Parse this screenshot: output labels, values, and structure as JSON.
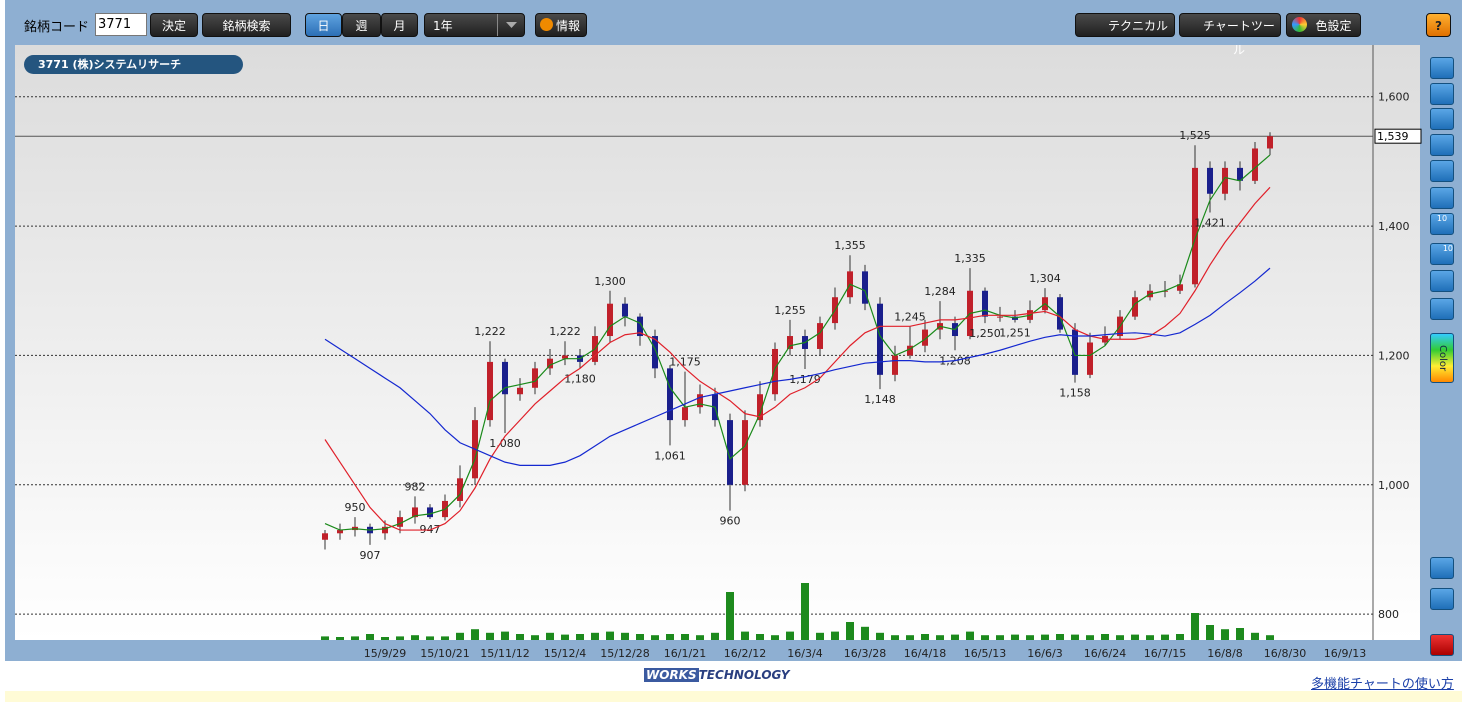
{
  "toolbar": {
    "code_label": "銘柄コード",
    "code_value": "3771",
    "decide": "決定",
    "search": "銘柄検索",
    "periods": [
      "日",
      "週",
      "月"
    ],
    "range": "1年",
    "info": "情報",
    "technical": "テクニカル",
    "chart_tool": "チャートツール",
    "color_setting": "色設定",
    "help": "?"
  },
  "side_tools": {
    "badges": [
      "10",
      "10"
    ],
    "color_label": "Color"
  },
  "chart_data": {
    "type": "candlestick",
    "title": "3771 (株)システムリサーチ",
    "ylim": [
      760,
      1680
    ],
    "yticks": [
      800,
      {
        "value": 1000,
        "label": "1,000"
      },
      {
        "value": 1200,
        "label": "1,200"
      },
      {
        "value": 1400,
        "label": "1,400"
      },
      {
        "value": 1600,
        "label": "1,600"
      }
    ],
    "grid": true,
    "last_price": {
      "value": 1539,
      "label": "1,539"
    },
    "up_color": "#c0202a",
    "down_color": "#1a1f8c",
    "volume_color": "#1d8a1d",
    "categories": [
      null,
      null,
      null,
      null,
      "15/9/29",
      null,
      null,
      null,
      "15/10/21",
      null,
      null,
      null,
      "15/11/12",
      null,
      null,
      null,
      "15/12/4",
      null,
      null,
      null,
      "15/12/28",
      null,
      null,
      null,
      "16/1/21",
      null,
      null,
      null,
      "16/2/12",
      null,
      null,
      null,
      "16/3/4",
      null,
      null,
      null,
      "16/3/28",
      null,
      null,
      null,
      "16/4/18",
      null,
      null,
      null,
      "16/5/13",
      null,
      null,
      null,
      "16/6/3",
      null,
      null,
      null,
      "16/6/24",
      null,
      null,
      null,
      "16/7/15",
      null,
      null,
      null,
      "16/8/8",
      null,
      null,
      null,
      "16/8/30",
      null,
      null,
      null,
      "16/9/13"
    ],
    "open": [
      915,
      925,
      930,
      935,
      925,
      935,
      950,
      965,
      950,
      975,
      1010,
      1100,
      1190,
      1140,
      1150,
      1180,
      1195,
      1200,
      1190,
      1230,
      1280,
      1260,
      1230,
      1180,
      1100,
      1120,
      1140,
      1100,
      1000,
      1100,
      1140,
      1210,
      1230,
      1210,
      1250,
      1290,
      1330,
      1280,
      1170,
      1200,
      1215,
      1240,
      1250,
      1230,
      1300,
      1260,
      1260,
      1255,
      1270,
      1290,
      1240,
      1170,
      1220,
      1230,
      1260,
      1290,
      1300,
      1300,
      1310,
      1490,
      1450,
      1490,
      1470,
      1520,
      null,
      null,
      null,
      null,
      null
    ],
    "high": [
      930,
      940,
      950,
      940,
      945,
      960,
      982,
      970,
      985,
      1030,
      1120,
      1222,
      1195,
      1165,
      1190,
      1210,
      1222,
      1210,
      1245,
      1300,
      1290,
      1265,
      1240,
      1185,
      1175,
      1155,
      1150,
      1110,
      1115,
      1160,
      1220,
      1255,
      1240,
      1260,
      1305,
      1355,
      1340,
      1290,
      1215,
      1245,
      1255,
      1284,
      1260,
      1335,
      1305,
      1275,
      1270,
      1285,
      1304,
      1295,
      1250,
      1235,
      1245,
      1270,
      1300,
      1310,
      1315,
      1325,
      1525,
      1500,
      1500,
      1500,
      1530,
      1545,
      null,
      null,
      null,
      null,
      null
    ],
    "low": [
      900,
      915,
      920,
      907,
      915,
      925,
      940,
      947,
      945,
      965,
      1000,
      1090,
      1080,
      1130,
      1140,
      1170,
      1185,
      1180,
      1185,
      1220,
      1245,
      1215,
      1165,
      1061,
      1090,
      1110,
      1090,
      960,
      990,
      1090,
      1130,
      1200,
      1179,
      1200,
      1240,
      1280,
      1270,
      1148,
      1160,
      1195,
      1205,
      1225,
      1208,
      1225,
      1250,
      1252,
      1251,
      1250,
      1265,
      1235,
      1158,
      1165,
      1215,
      1225,
      1255,
      1285,
      1290,
      1295,
      1305,
      1421,
      1440,
      1455,
      1465,
      1510,
      null,
      null,
      null,
      null,
      null
    ],
    "close": [
      925,
      930,
      935,
      925,
      935,
      950,
      965,
      950,
      975,
      1010,
      1100,
      1190,
      1140,
      1150,
      1180,
      1195,
      1200,
      1190,
      1230,
      1280,
      1260,
      1230,
      1180,
      1100,
      1120,
      1140,
      1100,
      1000,
      1100,
      1140,
      1210,
      1230,
      1210,
      1250,
      1290,
      1330,
      1280,
      1170,
      1200,
      1215,
      1240,
      1250,
      1230,
      1300,
      1260,
      1260,
      1255,
      1270,
      1290,
      1240,
      1170,
      1220,
      1230,
      1260,
      1290,
      1300,
      1300,
      1310,
      1490,
      1450,
      1490,
      1470,
      1520,
      1539,
      null,
      null,
      null,
      null,
      null
    ],
    "high_labels": [
      null,
      null,
      "950",
      null,
      null,
      null,
      "982",
      null,
      null,
      null,
      null,
      "1,222",
      null,
      null,
      null,
      null,
      "1,222",
      null,
      null,
      "1,300",
      null,
      null,
      null,
      null,
      "1,175",
      null,
      null,
      null,
      null,
      null,
      null,
      "1,255",
      null,
      null,
      null,
      "1,355",
      null,
      null,
      null,
      "1,245",
      null,
      "1,284",
      null,
      "1,335",
      null,
      null,
      null,
      null,
      "1,304",
      null,
      null,
      null,
      null,
      null,
      null,
      null,
      null,
      null,
      "1,525",
      null,
      null,
      null,
      null,
      null,
      null,
      null,
      null,
      null,
      null
    ],
    "low_labels": [
      null,
      null,
      null,
      "907",
      null,
      null,
      null,
      "947",
      null,
      null,
      null,
      null,
      "1,080",
      null,
      null,
      null,
      null,
      "1,180",
      null,
      null,
      null,
      null,
      null,
      "1,061",
      null,
      null,
      null,
      "960",
      null,
      null,
      null,
      null,
      "1,179",
      null,
      null,
      null,
      null,
      "1,148",
      null,
      null,
      null,
      null,
      "1,208",
      null,
      "1,250",
      null,
      "1,251",
      null,
      null,
      null,
      "1,158",
      null,
      null,
      null,
      null,
      null,
      null,
      null,
      null,
      "1,421",
      null,
      null,
      null,
      null,
      null,
      null,
      null,
      null,
      null
    ],
    "volume": [
      6,
      5,
      6,
      10,
      5,
      6,
      8,
      6,
      6,
      12,
      18,
      12,
      14,
      10,
      8,
      12,
      9,
      10,
      12,
      14,
      12,
      10,
      8,
      10,
      10,
      8,
      12,
      80,
      14,
      10,
      8,
      14,
      95,
      12,
      14,
      30,
      22,
      12,
      8,
      8,
      10,
      8,
      9,
      14,
      8,
      8,
      9,
      8,
      9,
      10,
      9,
      8,
      10,
      8,
      9,
      8,
      9,
      10,
      45,
      25,
      18,
      20,
      12,
      8,
      null,
      null,
      null,
      null,
      null
    ],
    "series": [
      {
        "color": "#1a8a1a",
        "values": [
          940,
          930,
          932,
          930,
          932,
          940,
          952,
          955,
          962,
          985,
          1040,
          1130,
          1150,
          1155,
          1160,
          1185,
          1195,
          1195,
          1210,
          1245,
          1260,
          1250,
          1210,
          1150,
          1120,
          1125,
          1120,
          1040,
          1060,
          1110,
          1180,
          1215,
          1220,
          1235,
          1270,
          1310,
          1300,
          1230,
          1200,
          1210,
          1225,
          1245,
          1240,
          1265,
          1270,
          1262,
          1258,
          1262,
          1280,
          1260,
          1200,
          1200,
          1215,
          1245,
          1280,
          1295,
          1300,
          1310,
          1380,
          1440,
          1475,
          1470,
          1490,
          1510,
          null,
          null,
          null,
          null,
          null
        ]
      },
      {
        "color": "#e0202a",
        "values": [
          1070,
          1035,
          1000,
          965,
          940,
          930,
          930,
          930,
          940,
          960,
          995,
          1040,
          1075,
          1100,
          1125,
          1145,
          1165,
          1180,
          1200,
          1220,
          1232,
          1235,
          1225,
          1205,
          1180,
          1160,
          1145,
          1130,
          1110,
          1105,
          1120,
          1140,
          1150,
          1165,
          1190,
          1215,
          1235,
          1245,
          1245,
          1245,
          1250,
          1255,
          1255,
          1258,
          1262,
          1262,
          1262,
          1265,
          1268,
          1260,
          1240,
          1230,
          1225,
          1225,
          1225,
          1230,
          1245,
          1265,
          1300,
          1340,
          1375,
          1405,
          1435,
          1460,
          null,
          null,
          null,
          null,
          null
        ]
      },
      {
        "color": "#1428d0",
        "values": [
          1225,
          1210,
          1195,
          1180,
          1165,
          1150,
          1130,
          1110,
          1085,
          1065,
          1055,
          1045,
          1035,
          1030,
          1030,
          1030,
          1035,
          1045,
          1060,
          1075,
          1085,
          1095,
          1105,
          1115,
          1125,
          1135,
          1140,
          1145,
          1150,
          1155,
          1160,
          1163,
          1167,
          1172,
          1178,
          1183,
          1188,
          1190,
          1192,
          1192,
          1190,
          1190,
          1192,
          1197,
          1202,
          1208,
          1215,
          1222,
          1228,
          1232,
          1230,
          1230,
          1232,
          1234,
          1235,
          1233,
          1230,
          1235,
          1248,
          1262,
          1280,
          1297,
          1315,
          1335,
          null,
          null,
          null,
          null,
          null
        ]
      }
    ]
  },
  "footer": {
    "logo_left": "WORKS",
    "logo_right": "TECHNOLOGY",
    "help_link": "多機能チャートの使い方"
  }
}
